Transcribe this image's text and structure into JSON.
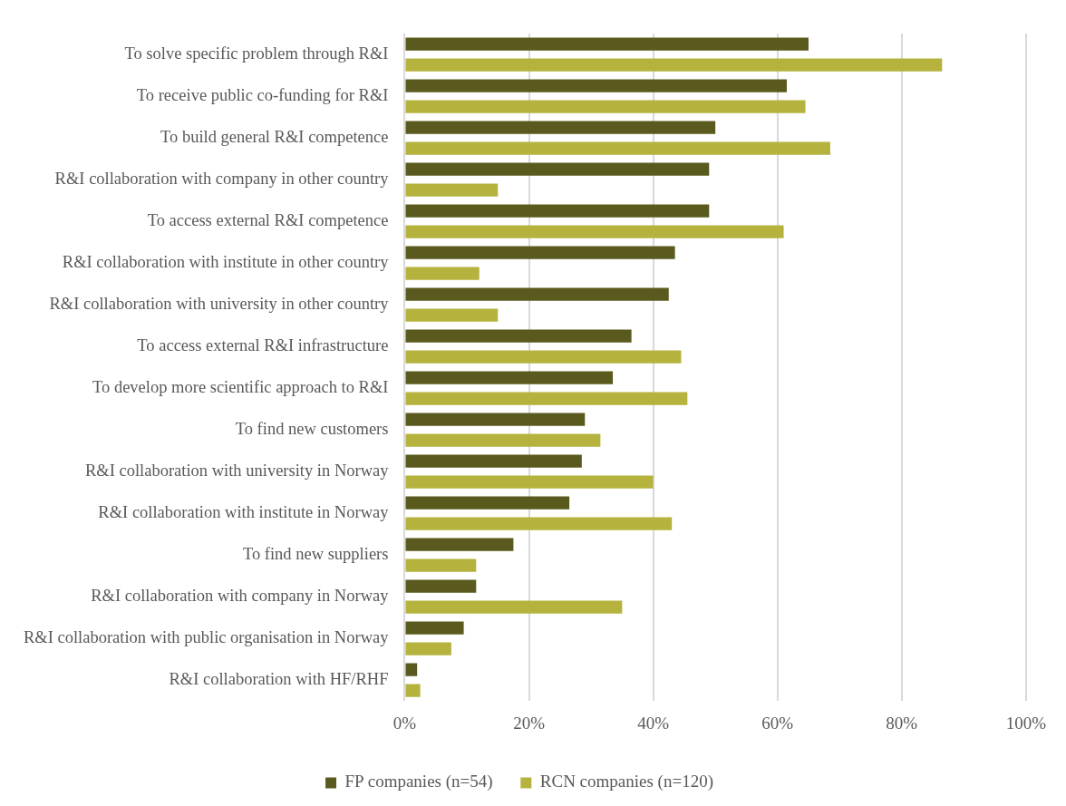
{
  "chart_data": {
    "type": "bar",
    "orientation": "horizontal",
    "categories": [
      "To solve specific problem through R&I",
      "To receive public co-funding for R&I",
      "To build general R&I competence",
      "R&I collaboration with company in other country",
      "To access external R&I competence",
      "R&I collaboration with institute in other country",
      "R&I collaboration with university in other country",
      "To access external R&I infrastructure",
      "To develop more scientific approach to R&I",
      "To find new customers",
      "R&I collaboration with university in Norway",
      "R&I collaboration with institute in Norway",
      "To find new suppliers",
      "R&I collaboration with company in Norway",
      "R&I collaboration with public organisation in Norway",
      "R&I collaboration with HF/RHF"
    ],
    "series": [
      {
        "name": "FP companies (n=54)",
        "color": "#5a5a1e",
        "values": [
          65,
          61.5,
          50,
          49,
          49,
          43.5,
          42.5,
          36.5,
          33.5,
          29,
          28.5,
          26.5,
          17.5,
          11.5,
          9.5,
          2
        ]
      },
      {
        "name": "RCN companies (n=120)",
        "color": "#b5b33e",
        "values": [
          86.5,
          64.5,
          68.5,
          15,
          61,
          12,
          15,
          44.5,
          45.5,
          31.5,
          40,
          43,
          11.5,
          35,
          7.5,
          2.5
        ]
      }
    ],
    "xlim": [
      0,
      100
    ],
    "xticks": [
      {
        "value": 0,
        "label": "0%"
      },
      {
        "value": 20,
        "label": "20%"
      },
      {
        "value": 40,
        "label": "40%"
      },
      {
        "value": 60,
        "label": "60%"
      },
      {
        "value": 80,
        "label": "80%"
      },
      {
        "value": 100,
        "label": "100%"
      }
    ],
    "grid": "x",
    "legend": "bottom"
  }
}
